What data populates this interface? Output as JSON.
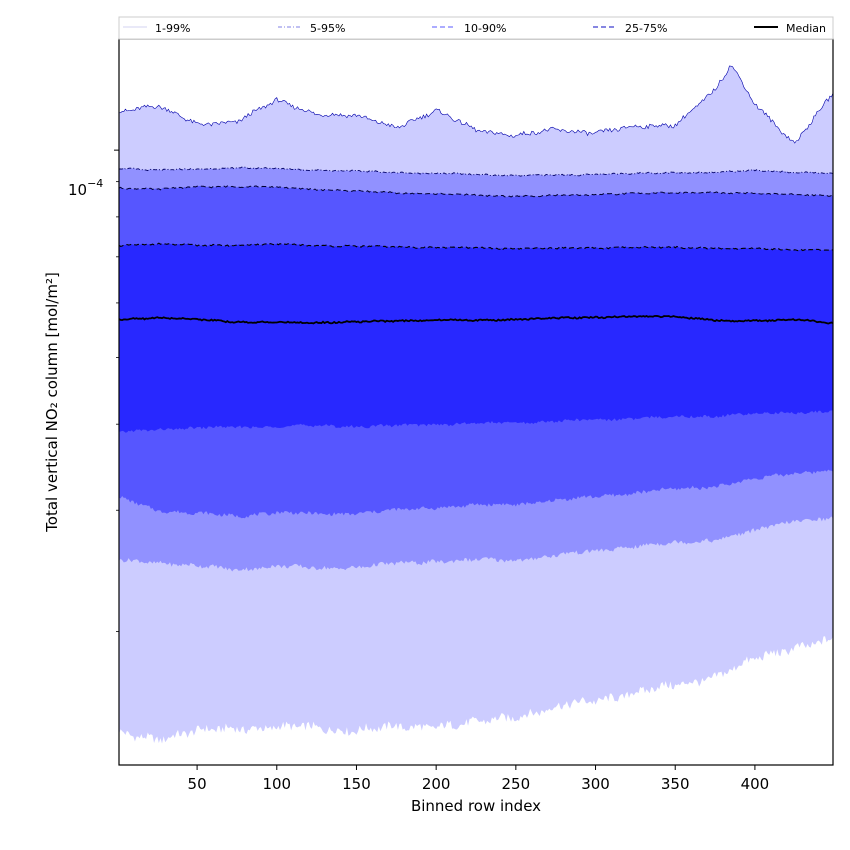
{
  "chart_data": {
    "type": "area",
    "xlabel": "Binned row index",
    "ylabel": "Total vertical NO₂ column [mol/m²]",
    "ytick_label": {
      "base": "10",
      "exponent": "−4"
    },
    "yscale": "log",
    "xlim": [
      1,
      449
    ],
    "ylim": [
      1.28e-05,
      0.000145
    ],
    "x_ticks": [
      50,
      100,
      150,
      200,
      250,
      300,
      350,
      400
    ],
    "y_major_tick": 0.0001,
    "y_minor_ticks": [
      2e-05,
      3e-05,
      4e-05,
      5e-05,
      6e-05,
      7e-05,
      8e-05,
      9e-05
    ],
    "legend_position": "top, spanning",
    "x": [
      1,
      25,
      50,
      75,
      100,
      125,
      150,
      175,
      200,
      225,
      250,
      275,
      300,
      325,
      350,
      375,
      385,
      400,
      425,
      449
    ],
    "bands": [
      {
        "name": "1-99%",
        "color": "#ccccff",
        "lower": [
          1.42e-05,
          1.4e-05,
          1.43e-05,
          1.45e-05,
          1.45e-05,
          1.45e-05,
          1.44e-05,
          1.45e-05,
          1.46e-05,
          1.47e-05,
          1.51e-05,
          1.55e-05,
          1.59e-05,
          1.63e-05,
          1.67e-05,
          1.72e-05,
          1.76e-05,
          1.82e-05,
          1.9e-05,
          1.94e-05
        ],
        "upper": [
          0.000114,
          0.000116,
          0.000109,
          0.00011,
          0.000118,
          0.000113,
          0.000112,
          0.000108,
          0.000114,
          0.000107,
          0.000105,
          0.000107,
          0.000106,
          0.000108,
          0.000109,
          0.000122,
          0.000133,
          0.000117,
          0.000102,
          0.000121
        ]
      },
      {
        "name": "5-95%",
        "color": "#9191ff",
        "lower": [
          2.54e-05,
          2.52e-05,
          2.49e-05,
          2.46e-05,
          2.49e-05,
          2.47e-05,
          2.48e-05,
          2.51e-05,
          2.53e-05,
          2.54e-05,
          2.54e-05,
          2.58e-05,
          2.62e-05,
          2.66e-05,
          2.69e-05,
          2.72e-05,
          2.75e-05,
          2.8e-05,
          2.9e-05,
          2.92e-05
        ],
        "upper": [
          9.42e-05,
          9.35e-05,
          9.38e-05,
          9.43e-05,
          9.4e-05,
          9.36e-05,
          9.32e-05,
          9.28e-05,
          9.25e-05,
          9.22e-05,
          9.18e-05,
          9.2e-05,
          9.22e-05,
          9.25e-05,
          9.28e-05,
          9.28e-05,
          9.3e-05,
          9.35e-05,
          9.28e-05,
          9.25e-05
        ]
      },
      {
        "name": "10-90%",
        "color": "#5656ff",
        "lower": [
          3.13e-05,
          3e-05,
          2.97e-05,
          2.94e-05,
          2.98e-05,
          2.96e-05,
          2.97e-05,
          3e-05,
          3.03e-05,
          3.05e-05,
          3.06e-05,
          3.1e-05,
          3.14e-05,
          3.18e-05,
          3.22e-05,
          3.25e-05,
          3.28e-05,
          3.33e-05,
          3.4e-05,
          3.43e-05
        ],
        "upper": [
          8.81e-05,
          8.78e-05,
          8.84e-05,
          8.86e-05,
          8.83e-05,
          8.77e-05,
          8.72e-05,
          8.67e-05,
          8.64e-05,
          8.6e-05,
          8.57e-05,
          8.59e-05,
          8.62e-05,
          8.65e-05,
          8.68e-05,
          8.67e-05,
          8.65e-05,
          8.66e-05,
          8.62e-05,
          8.58e-05
        ]
      },
      {
        "name": "25-75%",
        "color": "#2828ff",
        "lower": [
          3.89e-05,
          3.93e-05,
          3.95e-05,
          3.96e-05,
          3.97e-05,
          3.98e-05,
          3.97e-05,
          3.98e-05,
          4e-05,
          4.01e-05,
          4.02e-05,
          4.04e-05,
          4.06e-05,
          4.08e-05,
          4.1e-05,
          4.11e-05,
          4.13e-05,
          4.14e-05,
          4.16e-05,
          4.18e-05
        ],
        "upper": [
          7.27e-05,
          7.31e-05,
          7.27e-05,
          7.28e-05,
          7.3e-05,
          7.27e-05,
          7.25e-05,
          7.24e-05,
          7.22e-05,
          7.21e-05,
          7.2e-05,
          7.2e-05,
          7.21e-05,
          7.22e-05,
          7.23e-05,
          7.2e-05,
          7.19e-05,
          7.2e-05,
          7.17e-05,
          7.15e-05
        ]
      }
    ],
    "median": {
      "name": "Median",
      "color": "#000000",
      "values": [
        5.68e-05,
        5.71e-05,
        5.68e-05,
        5.63e-05,
        5.62e-05,
        5.62e-05,
        5.63e-05,
        5.65e-05,
        5.67e-05,
        5.66e-05,
        5.68e-05,
        5.7e-05,
        5.72e-05,
        5.73e-05,
        5.74e-05,
        5.66e-05,
        5.64e-05,
        5.65e-05,
        5.68e-05,
        5.6e-05
      ]
    },
    "legend": [
      {
        "label": "1-99%",
        "color": "#dcdcf4",
        "dash": "solid"
      },
      {
        "label": "5-95%",
        "color": "#9b9bea",
        "dash": "dashdot"
      },
      {
        "label": "10-90%",
        "color": "#7a7aff",
        "dash": "dashed"
      },
      {
        "label": "25-75%",
        "color": "#3e3ecf",
        "dash": "dashed"
      },
      {
        "label": "Median",
        "color": "#000000",
        "dash": "solid"
      }
    ]
  }
}
